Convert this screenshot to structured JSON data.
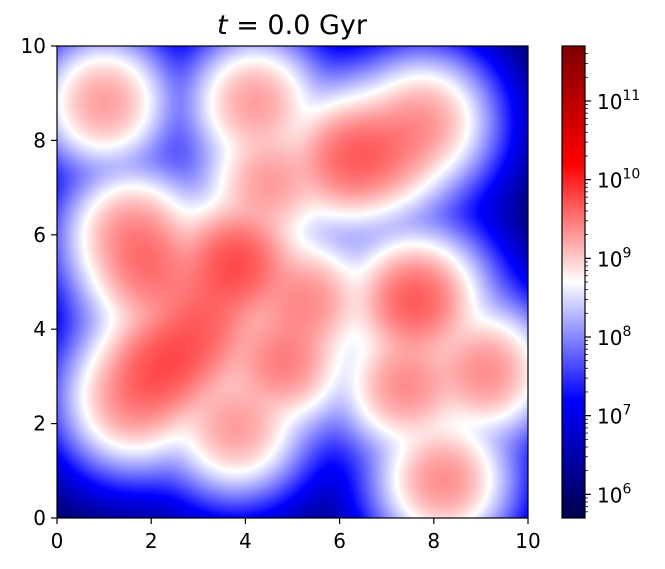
{
  "chart_data": {
    "type": "heatmap",
    "title": "t = 0.0 Gyr",
    "title_parts": {
      "var": "t",
      "rest": " =  0.0 Gyr"
    },
    "xlabel": "",
    "ylabel": "",
    "xlim": [
      0,
      10
    ],
    "ylim": [
      0,
      10
    ],
    "xticks": [
      "0",
      "2",
      "4",
      "6",
      "8",
      "10"
    ],
    "yticks": [
      "0",
      "2",
      "4",
      "6",
      "8",
      "10"
    ],
    "grid": false,
    "colorbar": {
      "scale": "log",
      "range": [
        500000.0,
        500000000000.0
      ],
      "tick_values": [
        1000000.0,
        10000000.0,
        100000000.0,
        1000000000.0,
        10000000000.0,
        100000000000.0
      ],
      "tick_exponents": [
        "6",
        "7",
        "8",
        "9",
        "10",
        "11"
      ],
      "tick_base": "10",
      "colormap": "seismic",
      "colors": [
        "#00004c",
        "#0000ff",
        "#ffffff",
        "#ff0000",
        "#7f0000"
      ]
    },
    "background_level": 1000000.0,
    "blobs": [
      {
        "x": 1.0,
        "y": 8.8,
        "peak": 2000000000.0
      },
      {
        "x": 4.2,
        "y": 8.8,
        "peak": 2000000000.0
      },
      {
        "x": 4.5,
        "y": 7.1,
        "peak": 2000000000.0
      },
      {
        "x": 6.2,
        "y": 7.6,
        "peak": 4000000000.0
      },
      {
        "x": 7.0,
        "y": 7.8,
        "peak": 2500000000.0
      },
      {
        "x": 7.8,
        "y": 8.4,
        "peak": 2000000000.0
      },
      {
        "x": 1.6,
        "y": 6.0,
        "peak": 2500000000.0
      },
      {
        "x": 2.0,
        "y": 5.2,
        "peak": 3000000000.0
      },
      {
        "x": 3.8,
        "y": 5.4,
        "peak": 6000000000.0
      },
      {
        "x": 5.3,
        "y": 4.6,
        "peak": 2500000000.0
      },
      {
        "x": 3.2,
        "y": 4.4,
        "peak": 2500000000.0
      },
      {
        "x": 2.2,
        "y": 3.2,
        "peak": 5000000000.0
      },
      {
        "x": 2.9,
        "y": 3.7,
        "peak": 3000000000.0
      },
      {
        "x": 1.6,
        "y": 2.5,
        "peak": 2500000000.0
      },
      {
        "x": 4.8,
        "y": 3.3,
        "peak": 3000000000.0
      },
      {
        "x": 3.8,
        "y": 1.9,
        "peak": 2000000000.0
      },
      {
        "x": 7.6,
        "y": 4.6,
        "peak": 5000000000.0
      },
      {
        "x": 7.4,
        "y": 2.8,
        "peak": 2500000000.0
      },
      {
        "x": 9.1,
        "y": 3.1,
        "peak": 2500000000.0
      },
      {
        "x": 8.2,
        "y": 0.8,
        "peak": 2500000000.0
      }
    ]
  }
}
